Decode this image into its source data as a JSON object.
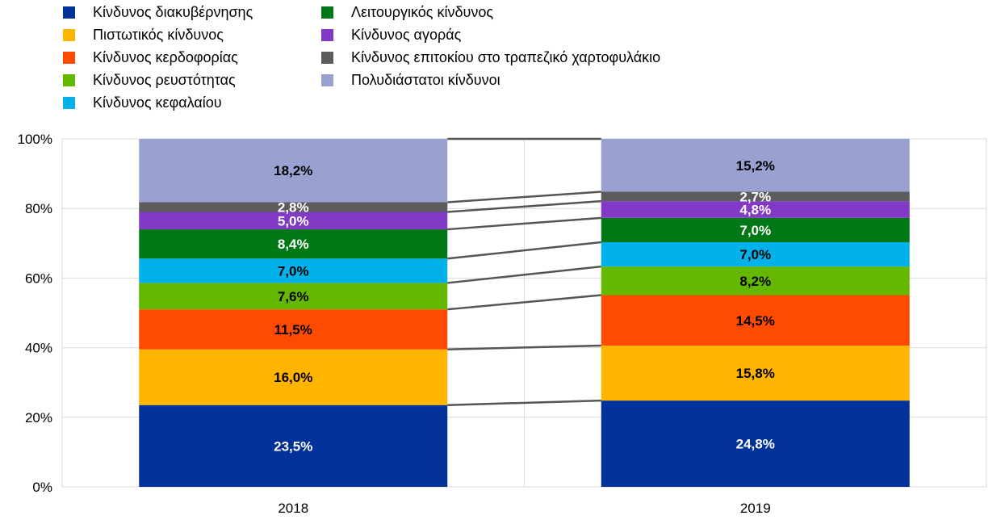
{
  "chart_data": {
    "type": "bar",
    "stacked": true,
    "categories": [
      "2018",
      "2019"
    ],
    "ylim": [
      0,
      100
    ],
    "yticks": [
      "0%",
      "20%",
      "40%",
      "60%",
      "80%",
      "100%"
    ],
    "grid": true,
    "legend_position": "top-left",
    "series": [
      {
        "name": "Κίνδυνος διακυβέρνησης",
        "color": "#003299",
        "values": [
          23.5,
          24.8
        ],
        "labels": [
          "23,5%",
          "24,8%"
        ],
        "label_color": "#ffffff"
      },
      {
        "name": "Πιστωτικός κίνδυνος",
        "color": "#ffb400",
        "values": [
          16.0,
          15.8
        ],
        "labels": [
          "16,0%",
          "15,8%"
        ],
        "label_color": "#000000"
      },
      {
        "name": "Κίνδυνος κερδοφορίας",
        "color": "#ff4b00",
        "values": [
          11.5,
          14.5
        ],
        "labels": [
          "11,5%",
          "14,5%"
        ],
        "label_color": "#000000"
      },
      {
        "name": "Κίνδυνος ρευστότητας",
        "color": "#65b800",
        "values": [
          7.6,
          8.2
        ],
        "labels": [
          "7,6%",
          "8,2%"
        ],
        "label_color": "#000000"
      },
      {
        "name": "Κίνδυνος κεφαλαίου",
        "color": "#00b1ea",
        "values": [
          7.0,
          7.0
        ],
        "labels": [
          "7,0%",
          "7,0%"
        ],
        "label_color": "#000000"
      },
      {
        "name": "Λειτουργικός κίνδυνος",
        "color": "#007816",
        "values": [
          8.4,
          7.0
        ],
        "labels": [
          "8,4%",
          "7,0%"
        ],
        "label_color": "#ffffff"
      },
      {
        "name": "Κίνδυνος αγοράς",
        "color": "#8139c6",
        "values": [
          5.0,
          4.8
        ],
        "labels": [
          "5,0%",
          "4,8%"
        ],
        "label_color": "#ffffff"
      },
      {
        "name": "Κίνδυνος επιτοκίου στο τραπεζικό χαρτοφυλάκιο",
        "color": "#5c5c5c",
        "values": [
          2.8,
          2.7
        ],
        "labels": [
          "2,8%",
          "2,7%"
        ],
        "label_color": "#ffffff"
      },
      {
        "name": "Πολυδιάστατοι κίνδυνοι",
        "color": "#98a1d0",
        "values": [
          18.2,
          15.2
        ],
        "labels": [
          "18,2%",
          "15,2%"
        ],
        "label_color": "#000000"
      }
    ]
  }
}
